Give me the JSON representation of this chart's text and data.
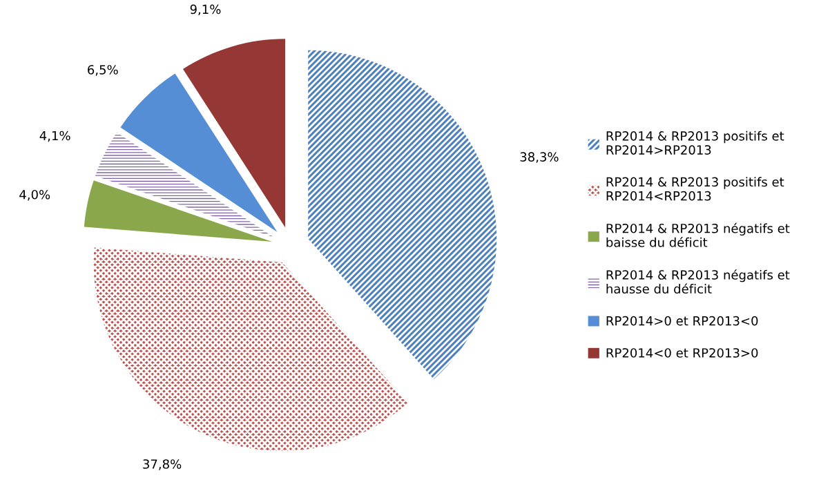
{
  "chart_data": {
    "type": "pie",
    "categories": [
      "RP2014 & RP2013 positifs et RP2014>RP2013",
      "RP2014 & RP2013 positifs et RP2014<RP2013",
      "RP2014 & RP2013 négatifs et baisse du déficit",
      "RP2014 & RP2013 négatifs et hausse du déficit",
      "RP2014>0 et RP2013<0",
      "RP2014<0 et RP2013>0"
    ],
    "values": [
      38.3,
      37.8,
      4.0,
      4.1,
      6.5,
      9.1
    ],
    "value_labels": [
      "38,3%",
      "37,8%",
      "4,0%",
      "4,1%",
      "6,5%",
      "9,1%"
    ],
    "colors": [
      "#4f81bd",
      "#c0504d",
      "#8aa84b",
      "#8064a2",
      "#558ed5",
      "#953735"
    ],
    "legend": "right"
  }
}
